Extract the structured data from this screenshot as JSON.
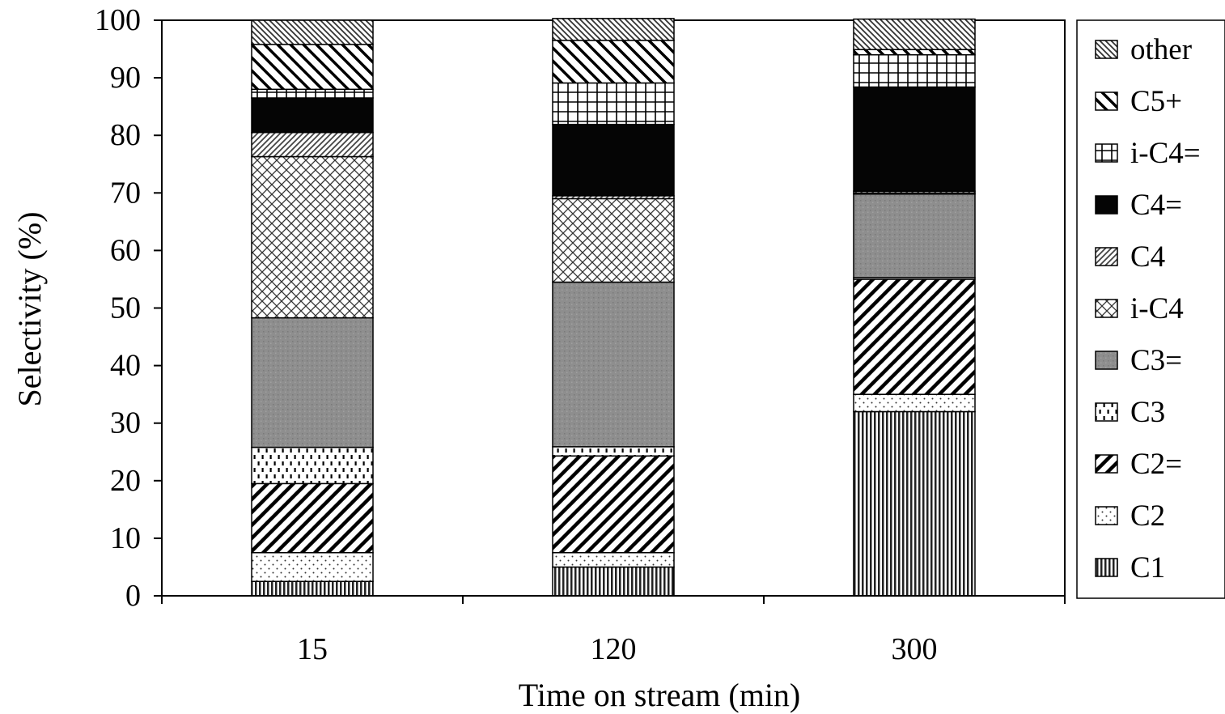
{
  "chart_data": {
    "type": "bar",
    "stacked": true,
    "xlabel": "Time on stream (min)",
    "ylabel": "Selectivity (%)",
    "ylim": [
      0,
      100
    ],
    "yticks": [
      0,
      10,
      20,
      30,
      40,
      50,
      60,
      70,
      80,
      90,
      100
    ],
    "categories": [
      "15",
      "120",
      "300"
    ],
    "legend_position": "right",
    "series": [
      {
        "name": "C1",
        "pattern": "vlines",
        "values": [
          2.5,
          5.0,
          32.0
        ]
      },
      {
        "name": "C2",
        "pattern": "dots",
        "values": [
          5.0,
          2.5,
          3.0
        ]
      },
      {
        "name": "C2=",
        "pattern": "diag-bold",
        "values": [
          12.0,
          16.8,
          20.0
        ]
      },
      {
        "name": "C3",
        "pattern": "dashes",
        "values": [
          6.3,
          1.6,
          0.3
        ]
      },
      {
        "name": "C3=",
        "pattern": "gray",
        "values": [
          22.5,
          28.6,
          14.5
        ]
      },
      {
        "name": "i-C4",
        "pattern": "crosshatch",
        "values": [
          28.0,
          14.5,
          0.2
        ]
      },
      {
        "name": "C4",
        "pattern": "diag-fine",
        "values": [
          4.2,
          0.5,
          0.3
        ]
      },
      {
        "name": "C4=",
        "pattern": "black",
        "values": [
          6.0,
          12.4,
          18.1
        ]
      },
      {
        "name": "i-C4=",
        "pattern": "grid",
        "values": [
          1.5,
          7.2,
          5.6
        ]
      },
      {
        "name": "C5+",
        "pattern": "backdiag-bold",
        "values": [
          7.8,
          7.4,
          0.9
        ]
      },
      {
        "name": "other",
        "pattern": "backdiag-fine",
        "values": [
          4.2,
          3.8,
          5.3
        ]
      }
    ]
  }
}
